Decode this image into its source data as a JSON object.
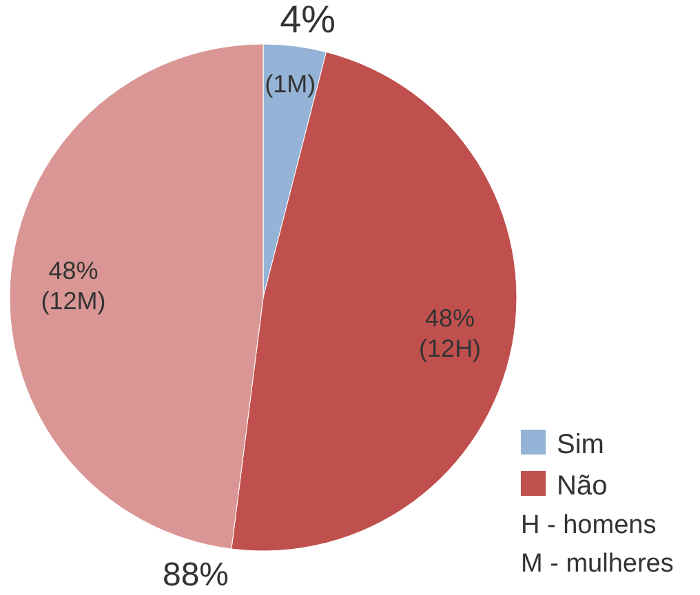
{
  "chart_data": {
    "type": "pie",
    "categories": [
      "Sim",
      "Não",
      null
    ],
    "values": [
      4,
      48,
      48
    ],
    "colors": [
      "#95b3d7",
      "#c0504d",
      "#d99694"
    ],
    "value_labels": [
      "4%\n(1M)",
      "48%\n(12H)",
      "48%\n(12M)"
    ],
    "legend": "bottom right",
    "annotations": [
      "88%",
      "H -  homens",
      "M - mulheres"
    ]
  }
}
